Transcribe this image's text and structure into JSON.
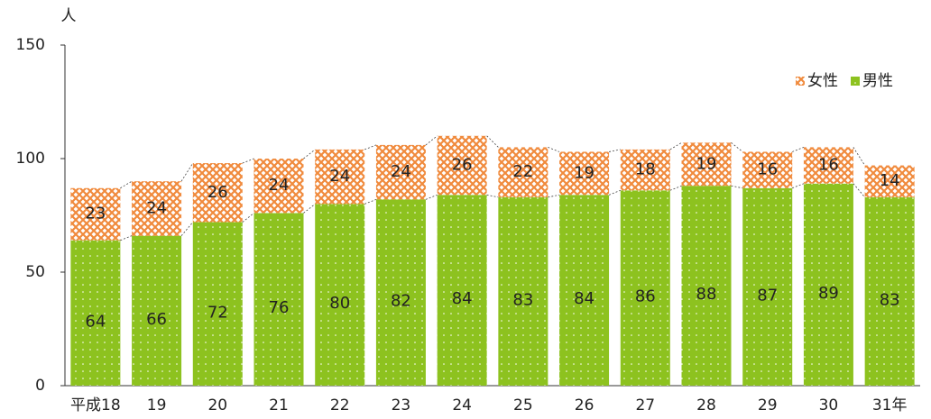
{
  "chart_data": {
    "type": "stacked_bar",
    "y_axis_label": "人",
    "categories": [
      "平成18",
      "19",
      "20",
      "21",
      "22",
      "23",
      "24",
      "25",
      "26",
      "27",
      "28",
      "29",
      "30",
      "31年"
    ],
    "series": [
      {
        "name": "男性",
        "color": "#8dc21f",
        "values": [
          64,
          66,
          72,
          76,
          80,
          82,
          84,
          83,
          84,
          86,
          88,
          87,
          89,
          83
        ]
      },
      {
        "name": "女性",
        "color": "#f08a3c",
        "values": [
          23,
          24,
          26,
          24,
          24,
          24,
          26,
          22,
          19,
          18,
          19,
          16,
          16,
          14
        ]
      }
    ],
    "ylim": [
      0,
      150
    ],
    "yticks": [
      0,
      50,
      100,
      150
    ],
    "legend": "upper right"
  }
}
